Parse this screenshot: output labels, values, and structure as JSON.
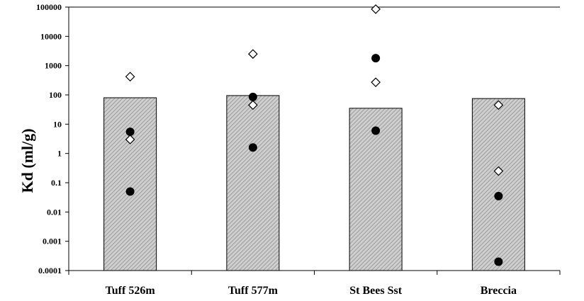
{
  "chart_data": {
    "type": "bar",
    "title": "",
    "xlabel": "",
    "ylabel": "Kd  (ml/g)",
    "yscale": "log",
    "ylim": [
      0.0001,
      100000
    ],
    "y_tick_labels": [
      "100000",
      "10000",
      "1000",
      "100",
      "10",
      "1",
      "0.1",
      "0.01",
      "0.001",
      "0.0001"
    ],
    "y_tick_values": [
      100000,
      10000,
      1000,
      100,
      10,
      1,
      0.1,
      0.01,
      0.001,
      0.0001
    ],
    "grid": false,
    "legend": "none",
    "categories": [
      "Tuff 526m",
      "Tuff 577m",
      "St Bees Sst",
      "Breccia"
    ],
    "series": [
      {
        "kind": "bar",
        "values": [
          80,
          95,
          35,
          75
        ],
        "fill": "hatched-grey"
      },
      {
        "kind": "scatter",
        "marker": "filled-circle",
        "points": [
          [
            5.5,
            0.05
          ],
          [
            85,
            1.6
          ],
          [
            1800,
            6
          ],
          [
            0.035,
            0.0002
          ]
        ]
      },
      {
        "kind": "scatter",
        "marker": "open-diamond",
        "points": [
          [
            420,
            3
          ],
          [
            2500,
            45
          ],
          [
            85000,
            270
          ],
          [
            45,
            0.25
          ]
        ]
      }
    ],
    "colors": {
      "bar_fill": "#cfcfcf",
      "hatch": "#9a9a9a",
      "marker": "#000000",
      "axis": "#000000"
    }
  }
}
